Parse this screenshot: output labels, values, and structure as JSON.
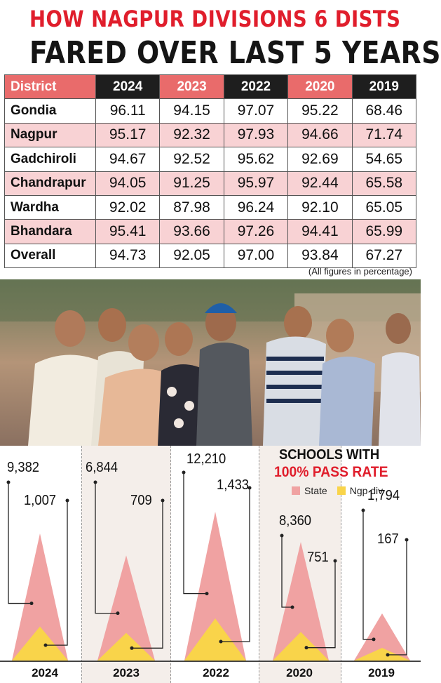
{
  "header": {
    "title_line1": "HOW NAGPUR DIVISIONS 6 DISTS",
    "title_line2": "FARED OVER LAST 5 YEARS"
  },
  "table": {
    "columns": [
      "District",
      "2024",
      "2023",
      "2022",
      "2020",
      "2019"
    ],
    "rows": [
      {
        "district": "Gondia",
        "values": [
          "96.11",
          "94.15",
          "97.07",
          "95.22",
          "68.46"
        ]
      },
      {
        "district": "Nagpur",
        "values": [
          "95.17",
          "92.32",
          "97.93",
          "94.66",
          "71.74"
        ]
      },
      {
        "district": "Gadchiroli",
        "values": [
          "94.67",
          "92.52",
          "95.62",
          "92.69",
          "54.65"
        ]
      },
      {
        "district": "Chandrapur",
        "values": [
          "94.05",
          "91.25",
          "95.97",
          "92.44",
          "65.58"
        ]
      },
      {
        "district": "Wardha",
        "values": [
          "92.02",
          "87.98",
          "96.24",
          "92.10",
          "65.05"
        ]
      },
      {
        "district": "Bhandara",
        "values": [
          "95.41",
          "93.66",
          "97.26",
          "94.41",
          "65.99"
        ]
      },
      {
        "district": "Overall",
        "values": [
          "94.73",
          "92.05",
          "97.00",
          "93.84",
          "67.27"
        ]
      }
    ],
    "note": "(All figures in percentage)"
  },
  "colors": {
    "accent_red": "#e01e2c",
    "header_pink": "#e96b6b",
    "row_pink": "#f8d2d4",
    "state": "#f0a2a2",
    "ngp": "#f9d44a"
  },
  "chart_data": {
    "type": "area",
    "title": "SCHOOLS WITH",
    "subtitle": "100% PASS RATE",
    "legend": "top-right",
    "categories": [
      "2024",
      "2023",
      "2022",
      "2020",
      "2019"
    ],
    "series": [
      {
        "name": "State",
        "values": [
          9382,
          6844,
          12210,
          8360,
          1794
        ]
      },
      {
        "name": "Ngp div",
        "values": [
          1007,
          709,
          1433,
          751,
          167
        ]
      }
    ],
    "state_labels": [
      "9,382",
      "6,844",
      "12,210",
      "8,360",
      "1,794"
    ],
    "ngp_labels": [
      "1,007",
      "709",
      "1,433",
      "751",
      "167"
    ]
  }
}
